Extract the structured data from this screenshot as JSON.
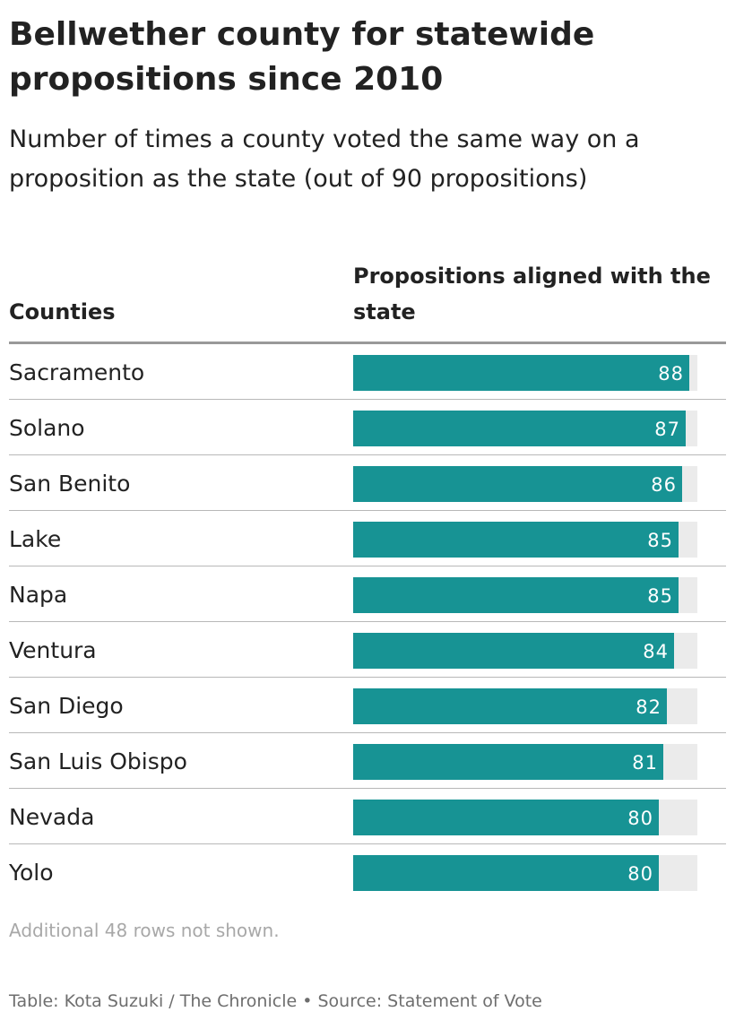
{
  "title": "Bellwether county for statewide propositions since 2010",
  "subtitle": "Number of times a county voted the same way on a proposition as the state (out of 90 propositions)",
  "columns": {
    "counties": "Counties",
    "propositions": "Propositions aligned with the state"
  },
  "note": "Additional 48 rows not shown.",
  "footer": {
    "table": "Table: Kota Suzuki / The Chronicle",
    "separator": "•",
    "source": "Source: Statement of Vote"
  },
  "colors": {
    "bar": "#179394",
    "track": "#ebebeb"
  },
  "chart_data": {
    "type": "table",
    "max": 90,
    "categories": [
      "Sacramento",
      "Solano",
      "San Benito",
      "Lake",
      "Napa",
      "Ventura",
      "San Diego",
      "San Luis Obispo",
      "Nevada",
      "Yolo"
    ],
    "values": [
      88,
      87,
      86,
      85,
      85,
      84,
      82,
      81,
      80,
      80
    ]
  }
}
